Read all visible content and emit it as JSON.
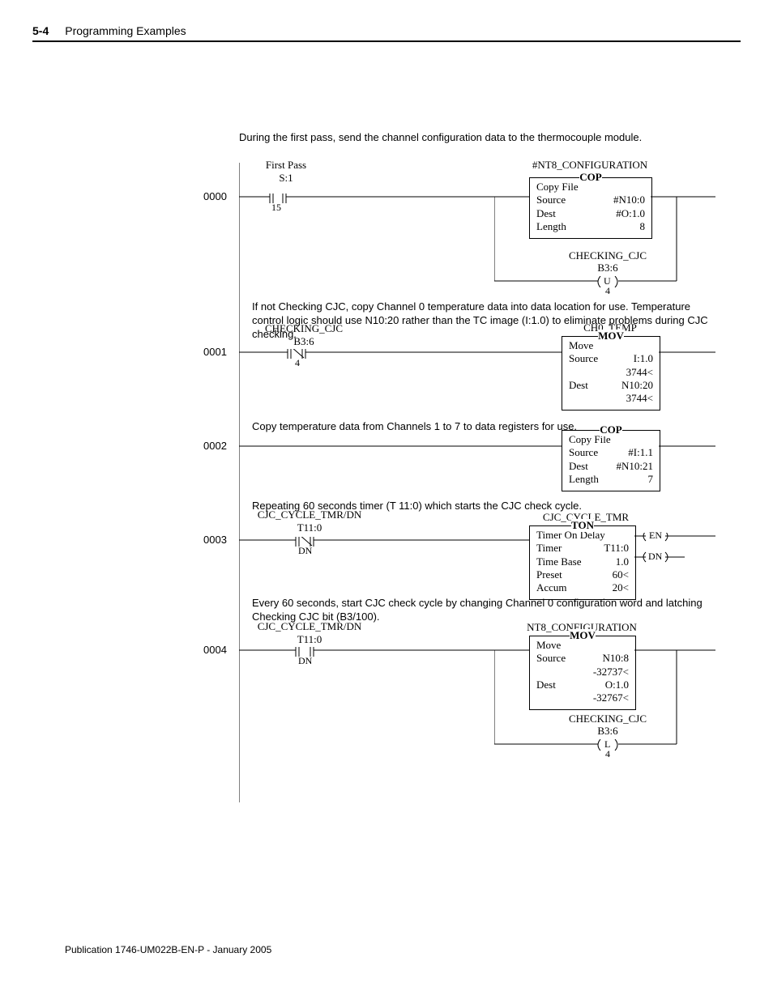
{
  "page_number": "5-4",
  "section": "Programming Examples",
  "footer": "Publication 1746-UM022B-EN-P - January 2005",
  "intro": "During the first pass, send the channel configuration data to the thermocouple module.",
  "rungs": [
    {
      "num": "0000",
      "contact": {
        "title": "First Pass",
        "addr": "S:1",
        "sub": "15",
        "type": "XIC"
      },
      "comment": null,
      "output_title": "#NT8_CONFIGURATION",
      "box": {
        "mnemonic": "COP",
        "rows": [
          {
            "l": "Copy File",
            "r": ""
          },
          {
            "l": "Source",
            "r": "#N10:0"
          },
          {
            "l": "Dest",
            "r": "#O:1.0"
          },
          {
            "l": "Length",
            "r": "8"
          }
        ]
      },
      "coil": {
        "title": "CHECKING_CJC",
        "addr": "B3:6",
        "type": "U",
        "sub": "4"
      }
    },
    {
      "num": "0001",
      "comment": "If not Checking CJC, copy Channel 0 temperature data into data location for use. Temperature control logic should use N10:20 rather than the TC image (I:1.0) to eliminate problems during CJC checking.",
      "contact": {
        "title": "CHECKING_CJC",
        "addr": "B3:6",
        "sub": "4",
        "type": "XIO"
      },
      "output_title": "CH0_TEMP",
      "box": {
        "mnemonic": "MOV",
        "rows": [
          {
            "l": "Move",
            "r": ""
          },
          {
            "l": "Source",
            "r": "I:1.0"
          },
          {
            "l": "",
            "r": "3744<"
          },
          {
            "l": "Dest",
            "r": "N10:20"
          },
          {
            "l": "",
            "r": "3744<"
          }
        ]
      }
    },
    {
      "num": "0002",
      "comment": "Copy temperature data from Channels 1 to 7 to data registers for use.",
      "box": {
        "mnemonic": "COP",
        "rows": [
          {
            "l": "Copy File",
            "r": ""
          },
          {
            "l": "Source",
            "r": "#I:1.1"
          },
          {
            "l": "Dest",
            "r": "#N10:21"
          },
          {
            "l": "Length",
            "r": "7"
          }
        ]
      }
    },
    {
      "num": "0003",
      "comment": "Repeating 60 seconds timer (T 11:0) which starts the CJC check cycle.",
      "contact": {
        "title": "CJC_CYCLE_TMR/DN",
        "addr": "T11:0",
        "sub": "DN",
        "type": "XIO"
      },
      "output_title": "CJC_CYCLE_TMR",
      "box": {
        "mnemonic": "TON",
        "rows": [
          {
            "l": "Timer On Delay",
            "r": ""
          },
          {
            "l": "Timer",
            "r": "T11:0"
          },
          {
            "l": "Time Base",
            "r": "1.0"
          },
          {
            "l": "Preset",
            "r": "60<"
          },
          {
            "l": "Accum",
            "r": "20<"
          }
        ],
        "outputs": [
          "EN",
          "DN"
        ]
      }
    },
    {
      "num": "0004",
      "comment": "Every 60 seconds, start CJC check cycle by changing Channel 0 configuration word and latching Checking CJC bit (B3/100).",
      "contact": {
        "title": "CJC_CYCLE_TMR/DN",
        "addr": "T11:0",
        "sub": "DN",
        "type": "XIC"
      },
      "output_title": "NT8_CONFIGURATION",
      "box": {
        "mnemonic": "MOV",
        "rows": [
          {
            "l": "Move",
            "r": ""
          },
          {
            "l": "Source",
            "r": "N10:8"
          },
          {
            "l": "",
            "r": "-32737<"
          },
          {
            "l": "Dest",
            "r": "O:1.0"
          },
          {
            "l": "",
            "r": "-32767<"
          }
        ]
      },
      "coil": {
        "title": "CHECKING_CJC",
        "addr": "B3:6",
        "type": "L",
        "sub": "4"
      }
    }
  ]
}
